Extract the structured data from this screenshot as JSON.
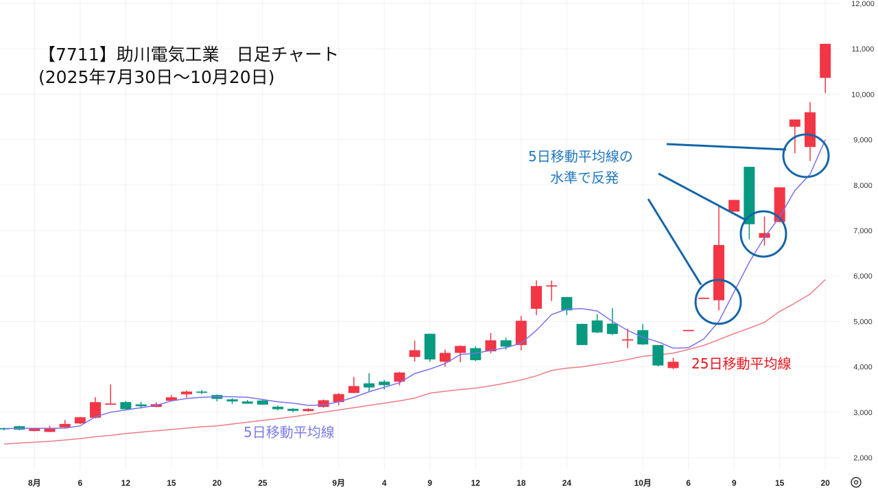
{
  "title_line1": "【7711】助川電気工業　日足チャート",
  "title_line2": "(2025年7月30日～10月20日)",
  "annotations": {
    "ma5_label": "5日移動平均線",
    "ma25_label": "25日移動平均線",
    "rebound_line1": "5日移動平均線の",
    "rebound_line2": "水準で反発"
  },
  "colors": {
    "up": "#f23645",
    "down": "#089981",
    "ma5": "#7b6ff0",
    "ma25": "#f07c84",
    "annotation": "#1565a8",
    "ma5_text": "#7b7be8",
    "ma25_text": "#e8141c",
    "rebound_text": "#1f77c0"
  },
  "settings_icon": "gear-icon",
  "chart_data": {
    "type": "candlestick",
    "title": "【7711】助川電気工業 日足チャート",
    "ylim": [
      2000,
      12000
    ],
    "y_ticks": [
      "2,000",
      "3,000",
      "4,000",
      "5,000",
      "6,000",
      "7,000",
      "8,000",
      "9,000",
      "10,000",
      "11,000",
      "12,000"
    ],
    "y_tick_values": [
      2000,
      3000,
      4000,
      5000,
      6000,
      7000,
      8000,
      9000,
      10000,
      11000,
      12000
    ],
    "x_ticks": [
      {
        "label": "8月",
        "index": 2
      },
      {
        "label": "6",
        "index": 5
      },
      {
        "label": "12",
        "index": 8
      },
      {
        "label": "15",
        "index": 11
      },
      {
        "label": "20",
        "index": 14
      },
      {
        "label": "25",
        "index": 17
      },
      {
        "label": "9月",
        "index": 22
      },
      {
        "label": "4",
        "index": 25
      },
      {
        "label": "9",
        "index": 28
      },
      {
        "label": "12",
        "index": 31
      },
      {
        "label": "18",
        "index": 34
      },
      {
        "label": "24",
        "index": 37
      },
      {
        "label": "10月",
        "index": 42
      },
      {
        "label": "6",
        "index": 45
      },
      {
        "label": "9",
        "index": 48
      },
      {
        "label": "15",
        "index": 51
      },
      {
        "label": "20",
        "index": 54
      }
    ],
    "columns": [
      "date",
      "open",
      "high",
      "low",
      "close"
    ],
    "candles": [
      [
        "7/30",
        2650,
        2660,
        2600,
        2635
      ],
      [
        "7/31",
        2692,
        2700,
        2600,
        2616
      ],
      [
        "8/1",
        2586,
        2660,
        2580,
        2641
      ],
      [
        "8/4",
        2566,
        2700,
        2560,
        2636
      ],
      [
        "8/5",
        2667,
        2830,
        2660,
        2742
      ],
      [
        "8/6",
        2753,
        2900,
        2740,
        2889
      ],
      [
        "8/7",
        2879,
        3333,
        2860,
        3222
      ],
      [
        "8/8",
        3180,
        3611,
        3180,
        3192
      ],
      [
        "8/12",
        3222,
        3250,
        3066,
        3066
      ],
      [
        "8/13",
        3172,
        3230,
        3080,
        3131
      ],
      [
        "8/14",
        3116,
        3220,
        3110,
        3177
      ],
      [
        "8/15",
        3252,
        3380,
        3250,
        3328
      ],
      [
        "8/18",
        3394,
        3480,
        3320,
        3455
      ],
      [
        "8/19",
        3455,
        3490,
        3400,
        3445
      ],
      [
        "8/20",
        3379,
        3390,
        3240,
        3293
      ],
      [
        "8/21",
        3283,
        3310,
        3180,
        3237
      ],
      [
        "8/22",
        3237,
        3270,
        3190,
        3187
      ],
      [
        "8/25",
        3258,
        3270,
        3160,
        3167
      ],
      [
        "8/26",
        3121,
        3150,
        3040,
        3066
      ],
      [
        "8/27",
        3076,
        3090,
        3000,
        3030
      ],
      [
        "8/28",
        3025,
        3090,
        3010,
        3071
      ],
      [
        "8/29",
        3116,
        3280,
        3100,
        3263
      ],
      [
        "9/1",
        3222,
        3420,
        3150,
        3399
      ],
      [
        "9/2",
        3424,
        3778,
        3420,
        3576
      ],
      [
        "9/3",
        3636,
        3860,
        3450,
        3545
      ],
      [
        "9/4",
        3672,
        3710,
        3500,
        3596
      ],
      [
        "9/5",
        3672,
        3890,
        3590,
        3874
      ],
      [
        "9/8",
        4217,
        4576,
        4116,
        4364
      ],
      [
        "9/9",
        4727,
        4730,
        4110,
        4162
      ],
      [
        "9/10",
        4111,
        4380,
        4000,
        4306
      ],
      [
        "9/11",
        4306,
        4470,
        4100,
        4458
      ],
      [
        "9/12",
        4410,
        4450,
        4130,
        4146
      ],
      [
        "9/16",
        4340,
        4743,
        4300,
        4583
      ],
      [
        "9/17",
        4583,
        4640,
        4380,
        4444
      ],
      [
        "9/18",
        4479,
        5118,
        4361,
        5014
      ],
      [
        "9/19",
        5278,
        5903,
        5139,
        5778
      ],
      [
        "9/22",
        5785,
        5900,
        5450,
        5795
      ],
      [
        "9/24",
        5535,
        5540,
        5139,
        5243
      ],
      [
        "9/25",
        4944,
        4950,
        4479,
        4479
      ],
      [
        "9/26",
        5020,
        5160,
        4740,
        4757
      ],
      [
        "9/29",
        4951,
        5292,
        4700,
        4722
      ],
      [
        "9/30",
        4590,
        4840,
        4410,
        4605
      ],
      [
        "10/1",
        4806,
        4944,
        4480,
        4493
      ],
      [
        "10/2",
        4479,
        4480,
        4010,
        4028
      ],
      [
        "10/3",
        3972,
        4201,
        3950,
        4111
      ],
      [
        "10/6",
        4806,
        4810,
        4800,
        4812
      ],
      [
        "10/7",
        5515,
        5525,
        5510,
        5521
      ],
      [
        "10/8",
        5465,
        7569,
        5243,
        6681
      ],
      [
        "10/9",
        7417,
        7674,
        7417,
        7674
      ],
      [
        "10/10",
        8403,
        8403,
        6806,
        7139
      ],
      [
        "10/14",
        6840,
        7306,
        6667,
        6944
      ],
      [
        "10/15",
        7188,
        7951,
        7180,
        7951
      ],
      [
        "10/16",
        9285,
        9444,
        8701,
        9444
      ],
      [
        "10/17",
        8840,
        9826,
        8528,
        9604
      ],
      [
        "10/20",
        10361,
        11111,
        10028,
        11111
      ]
    ],
    "series": [
      {
        "name": "5日移動平均線",
        "values": [
          2640,
          2645,
          2645,
          2645,
          2650,
          2700,
          2900,
          3000,
          3050,
          3100,
          3150,
          3250,
          3300,
          3330,
          3340,
          3340,
          3330,
          3280,
          3230,
          3200,
          3150,
          3160,
          3230,
          3330,
          3450,
          3550,
          3650,
          3850,
          3950,
          4070,
          4270,
          4300,
          4360,
          4420,
          4520,
          4800,
          5150,
          5270,
          5280,
          5230,
          5000,
          4800,
          4650,
          4550,
          4410,
          4420,
          4610,
          5000,
          5650,
          6300,
          6850,
          7300,
          7880,
          8240,
          9000
        ]
      },
      {
        "name": "25日移動平均線",
        "values": [
          2300,
          2320,
          2340,
          2360,
          2390,
          2420,
          2460,
          2490,
          2530,
          2560,
          2590,
          2620,
          2650,
          2680,
          2700,
          2740,
          2780,
          2820,
          2860,
          2900,
          2950,
          3000,
          3050,
          3100,
          3150,
          3200,
          3250,
          3310,
          3420,
          3460,
          3500,
          3530,
          3580,
          3640,
          3710,
          3800,
          3920,
          3970,
          4000,
          4050,
          4100,
          4160,
          4230,
          4260,
          4300,
          4380,
          4470,
          4600,
          4730,
          4850,
          4980,
          5220,
          5400,
          5600,
          5920
        ]
      }
    ]
  }
}
